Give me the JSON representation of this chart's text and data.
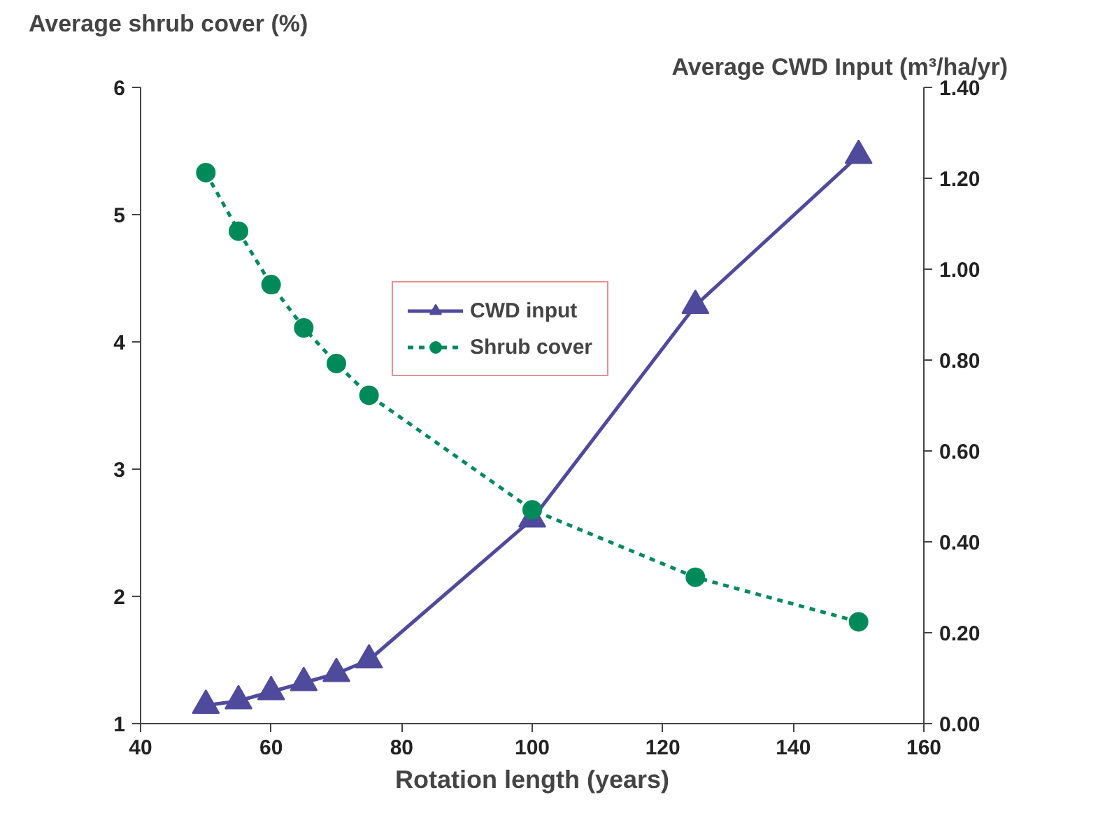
{
  "chart_data": {
    "type": "line",
    "xlabel": "Rotation length (years)",
    "ylabel": "Average shrub cover (%)",
    "y2label": "Average CWD Input (m³/ha/yr)",
    "x": [
      50,
      55,
      60,
      65,
      70,
      75,
      100,
      125,
      150
    ],
    "xlim": [
      40,
      160
    ],
    "xticks": [
      40,
      60,
      80,
      100,
      120,
      140,
      160
    ],
    "ylim": [
      1,
      6
    ],
    "yticks": [
      1,
      2,
      3,
      4,
      5,
      6
    ],
    "y2lim": [
      0,
      1.4
    ],
    "y2ticks": [
      {
        "value": 0,
        "label": "0.00"
      },
      {
        "value": 0.2,
        "label": "0.20"
      },
      {
        "value": 0.4,
        "label": "0.40"
      },
      {
        "value": 0.6,
        "label": "0.60"
      },
      {
        "value": 0.8,
        "label": "0.80"
      },
      {
        "value": 1.0,
        "label": "1.00"
      },
      {
        "value": 1.2,
        "label": "1.20"
      },
      {
        "value": 1.4,
        "label": "1.40"
      }
    ],
    "series": [
      {
        "name": "CWD input",
        "color": "#4f4a9c",
        "axis": "y2",
        "marker": "triangle",
        "line_style": "solid",
        "values": [
          0.04,
          0.05,
          0.07,
          0.09,
          0.11,
          0.14,
          0.45,
          0.92,
          1.25
        ]
      },
      {
        "name": "Shrub cover",
        "color": "#008a5a",
        "marker": "circle",
        "line_style": "dashed",
        "values": [
          5.33,
          4.87,
          4.45,
          4.11,
          3.83,
          3.58,
          2.68,
          2.15,
          1.8
        ]
      }
    ],
    "legend": "top",
    "grid": false
  }
}
